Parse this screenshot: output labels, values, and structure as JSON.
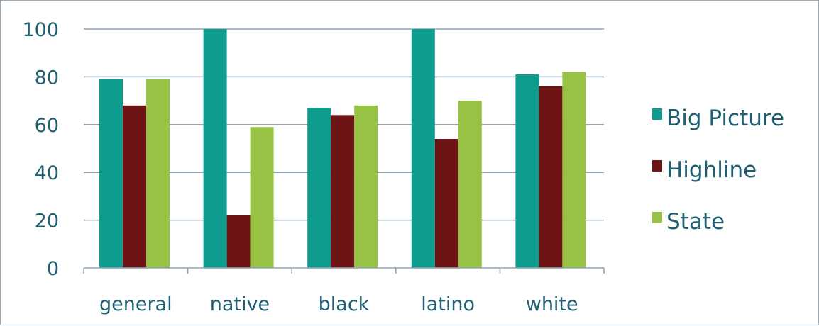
{
  "chart_data": {
    "type": "bar",
    "categories": [
      "general",
      "native",
      "black",
      "latino",
      "white"
    ],
    "series": [
      {
        "name": "Big Picture",
        "color": "#0e9c8e",
        "values": [
          79,
          100,
          67,
          100,
          81
        ]
      },
      {
        "name": "Highline",
        "color": "#6e1414",
        "values": [
          68,
          22,
          64,
          54,
          76
        ]
      },
      {
        "name": "State",
        "color": "#98c244",
        "values": [
          79,
          59,
          68,
          70,
          82
        ]
      }
    ],
    "ylim": [
      0,
      100
    ],
    "yticks": [
      0,
      20,
      40,
      60,
      80,
      100
    ],
    "grid": true,
    "legend_position": "right",
    "title": "",
    "xlabel": "",
    "ylabel": ""
  }
}
